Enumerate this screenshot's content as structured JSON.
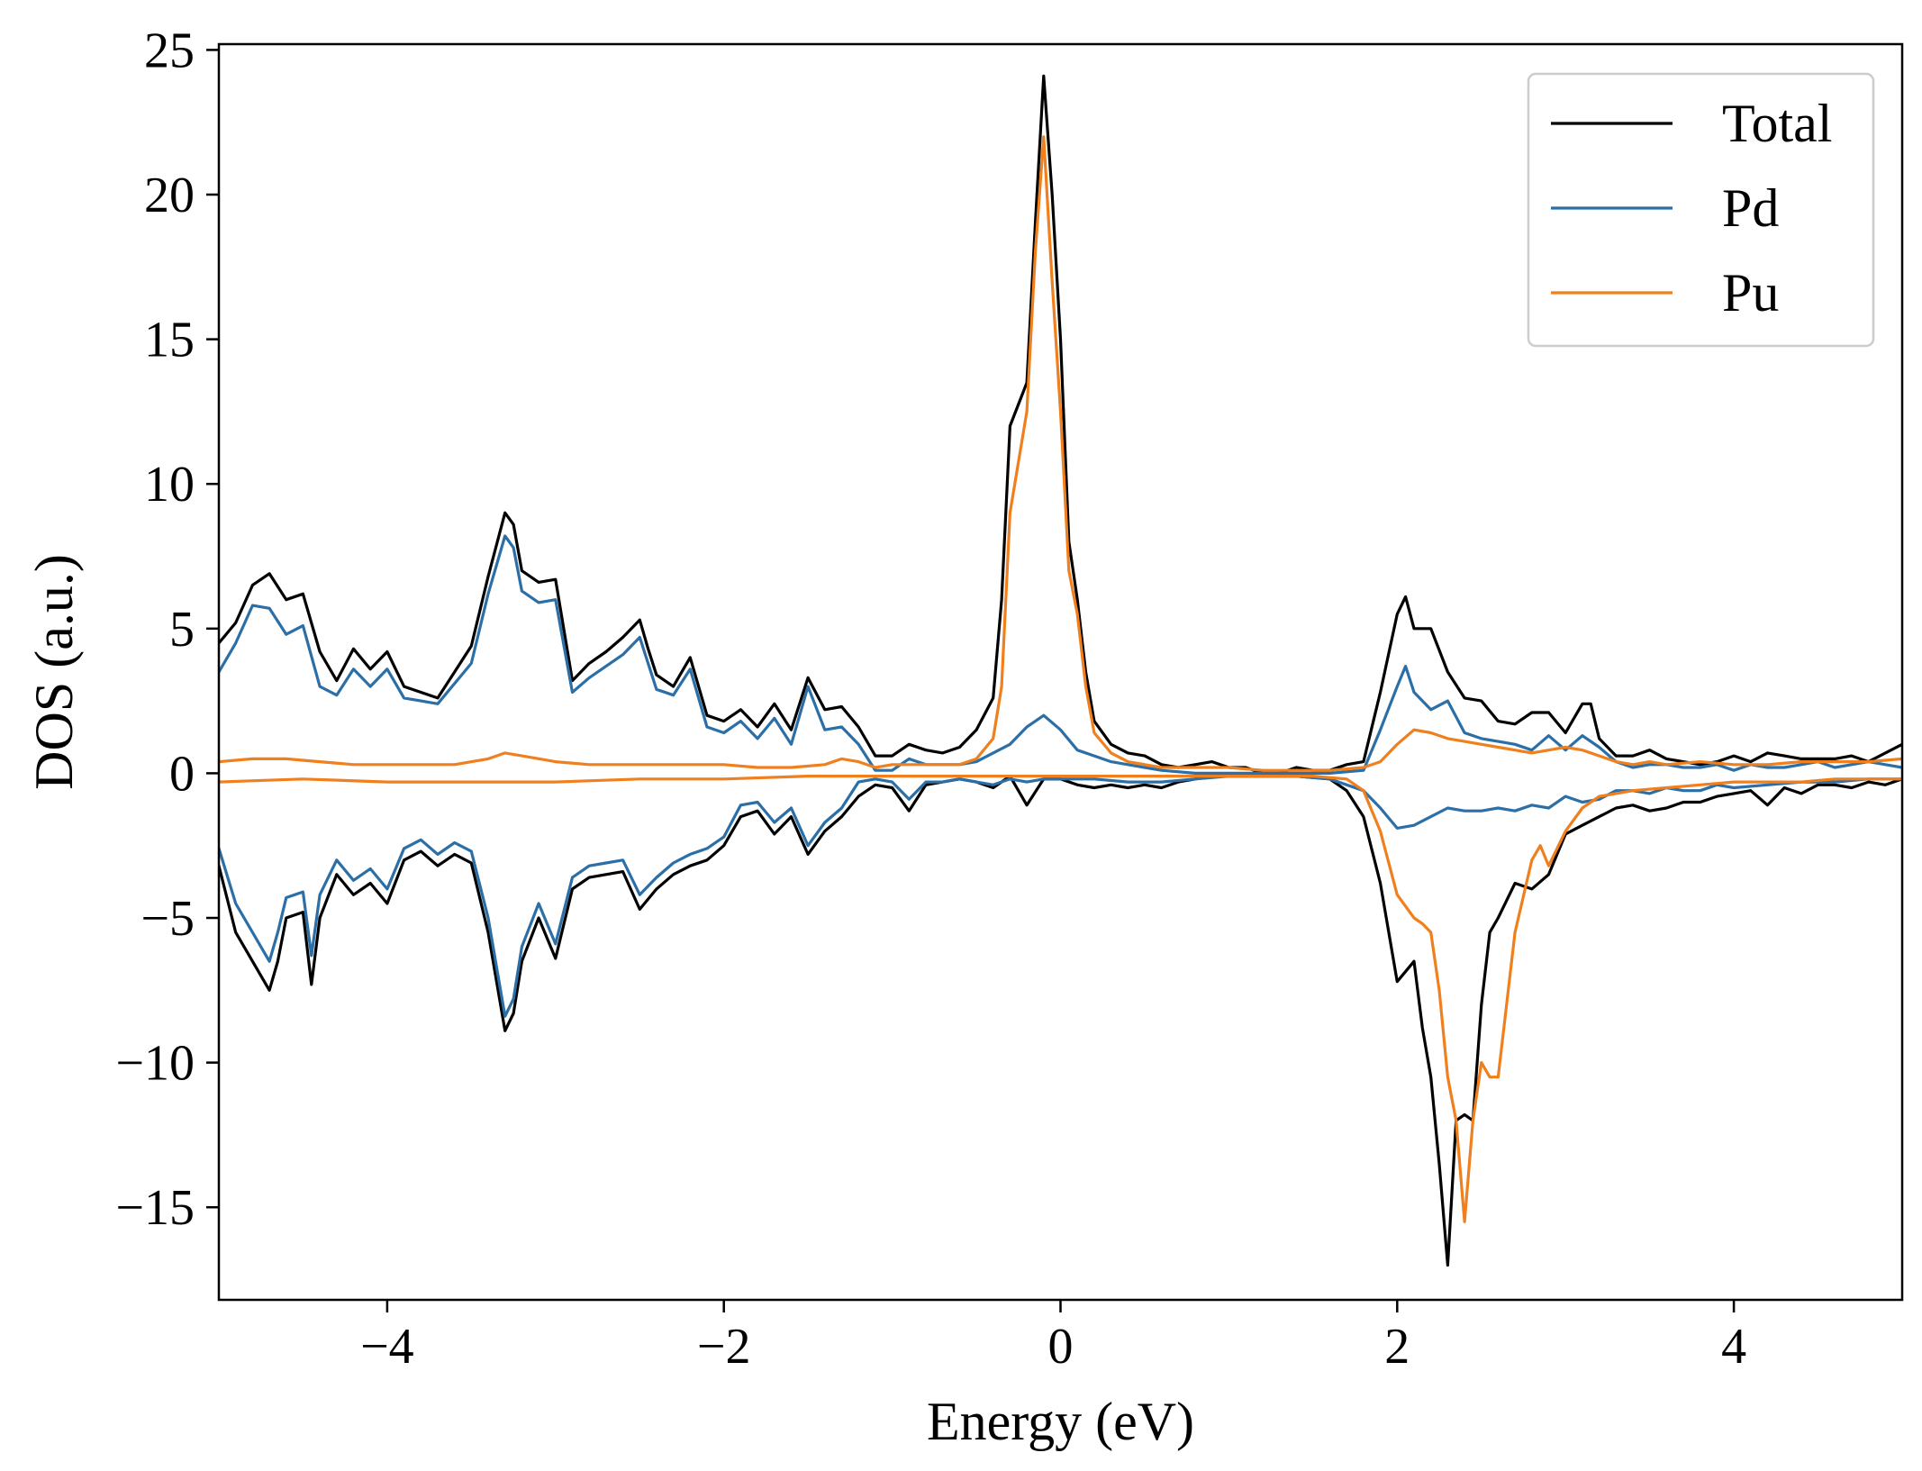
{
  "chart_data": {
    "type": "line",
    "title": "",
    "xlabel": "Energy (eV)",
    "ylabel": "DOS (a.u.)",
    "xlim": [
      -5,
      5
    ],
    "ylim": [
      -18.2,
      25.2
    ],
    "xticks": [
      -4,
      -2,
      0,
      2,
      4
    ],
    "xtick_labels": [
      "−4",
      "−2",
      "0",
      "2",
      "4"
    ],
    "yticks": [
      -15,
      -10,
      -5,
      0,
      5,
      10,
      15,
      20,
      25
    ],
    "ytick_labels": [
      "−15",
      "−10",
      "−5",
      "0",
      "5",
      "10",
      "15",
      "20",
      "25"
    ],
    "grid": false,
    "legend_position": "top-right",
    "series": [
      {
        "name": "Total",
        "color": "#000000",
        "component": "spin-up",
        "x": [
          -5.0,
          -4.9,
          -4.8,
          -4.7,
          -4.6,
          -4.5,
          -4.4,
          -4.3,
          -4.2,
          -4.1,
          -4.0,
          -3.9,
          -3.8,
          -3.7,
          -3.6,
          -3.5,
          -3.4,
          -3.3,
          -3.25,
          -3.2,
          -3.1,
          -3.0,
          -2.9,
          -2.8,
          -2.7,
          -2.6,
          -2.5,
          -2.45,
          -2.4,
          -2.3,
          -2.2,
          -2.1,
          -2.0,
          -1.9,
          -1.8,
          -1.7,
          -1.6,
          -1.5,
          -1.4,
          -1.3,
          -1.2,
          -1.1,
          -1.0,
          -0.9,
          -0.8,
          -0.7,
          -0.6,
          -0.5,
          -0.4,
          -0.35,
          -0.3,
          -0.2,
          -0.15,
          -0.1,
          -0.05,
          0.0,
          0.05,
          0.1,
          0.15,
          0.2,
          0.3,
          0.4,
          0.5,
          0.6,
          0.7,
          0.8,
          0.9,
          1.0,
          1.1,
          1.2,
          1.3,
          1.4,
          1.5,
          1.6,
          1.7,
          1.8,
          1.9,
          2.0,
          2.05,
          2.1,
          2.2,
          2.3,
          2.4,
          2.5,
          2.6,
          2.7,
          2.8,
          2.9,
          3.0,
          3.1,
          3.15,
          3.2,
          3.3,
          3.4,
          3.5,
          3.6,
          3.7,
          3.8,
          3.9,
          4.0,
          4.1,
          4.2,
          4.3,
          4.4,
          4.5,
          4.6,
          4.7,
          4.8,
          4.9,
          5.0
        ],
        "y": [
          4.5,
          5.2,
          6.5,
          6.9,
          6.0,
          6.2,
          4.2,
          3.2,
          4.3,
          3.6,
          4.2,
          3.0,
          2.8,
          2.6,
          3.5,
          4.4,
          6.8,
          9.0,
          8.6,
          7.0,
          6.6,
          6.7,
          3.2,
          3.8,
          4.2,
          4.7,
          5.3,
          4.3,
          3.4,
          3.0,
          4.0,
          2.0,
          1.8,
          2.2,
          1.6,
          2.4,
          1.5,
          3.3,
          2.2,
          2.3,
          1.6,
          0.6,
          0.6,
          1.0,
          0.8,
          0.7,
          0.9,
          1.5,
          2.6,
          6.0,
          12.0,
          13.5,
          19.0,
          24.1,
          20.0,
          15.0,
          8.0,
          6.0,
          3.5,
          1.8,
          1.0,
          0.7,
          0.6,
          0.3,
          0.2,
          0.3,
          0.4,
          0.2,
          0.2,
          0.0,
          0.0,
          0.2,
          0.1,
          0.1,
          0.3,
          0.4,
          2.8,
          5.5,
          6.1,
          5.0,
          5.0,
          3.5,
          2.6,
          2.5,
          1.8,
          1.7,
          2.1,
          2.1,
          1.4,
          2.4,
          2.4,
          1.2,
          0.6,
          0.6,
          0.8,
          0.5,
          0.4,
          0.3,
          0.4,
          0.6,
          0.4,
          0.7,
          0.6,
          0.5,
          0.5,
          0.5,
          0.6,
          0.4,
          0.7,
          1.0
        ]
      },
      {
        "name": "",
        "color": "#000000",
        "component": "spin-down",
        "x": [
          -5.0,
          -4.9,
          -4.8,
          -4.7,
          -4.65,
          -4.6,
          -4.5,
          -4.45,
          -4.4,
          -4.3,
          -4.2,
          -4.1,
          -4.0,
          -3.9,
          -3.8,
          -3.7,
          -3.6,
          -3.5,
          -3.4,
          -3.3,
          -3.25,
          -3.2,
          -3.1,
          -3.0,
          -2.9,
          -2.8,
          -2.7,
          -2.6,
          -2.5,
          -2.4,
          -2.3,
          -2.2,
          -2.1,
          -2.0,
          -1.9,
          -1.8,
          -1.7,
          -1.6,
          -1.5,
          -1.4,
          -1.3,
          -1.2,
          -1.1,
          -1.0,
          -0.9,
          -0.8,
          -0.7,
          -0.6,
          -0.5,
          -0.4,
          -0.3,
          -0.2,
          -0.1,
          0.0,
          0.1,
          0.2,
          0.3,
          0.4,
          0.5,
          0.6,
          0.7,
          0.8,
          0.9,
          1.0,
          1.2,
          1.4,
          1.6,
          1.7,
          1.8,
          1.9,
          2.0,
          2.1,
          2.15,
          2.2,
          2.25,
          2.3,
          2.35,
          2.4,
          2.45,
          2.5,
          2.55,
          2.6,
          2.7,
          2.8,
          2.9,
          3.0,
          3.1,
          3.2,
          3.3,
          3.4,
          3.5,
          3.6,
          3.7,
          3.8,
          3.9,
          4.0,
          4.1,
          4.2,
          4.3,
          4.4,
          4.5,
          4.6,
          4.7,
          4.8,
          4.9,
          5.0
        ],
        "y": [
          -3.2,
          -5.5,
          -6.5,
          -7.5,
          -6.5,
          -5.0,
          -4.8,
          -7.3,
          -5.0,
          -3.5,
          -4.2,
          -3.8,
          -4.5,
          -3.0,
          -2.7,
          -3.2,
          -2.8,
          -3.1,
          -5.5,
          -8.9,
          -8.3,
          -6.5,
          -5.0,
          -6.4,
          -4.0,
          -3.6,
          -3.5,
          -3.4,
          -4.7,
          -4.0,
          -3.5,
          -3.2,
          -3.0,
          -2.5,
          -1.5,
          -1.3,
          -2.1,
          -1.5,
          -2.8,
          -2.0,
          -1.5,
          -0.8,
          -0.4,
          -0.5,
          -1.3,
          -0.4,
          -0.3,
          -0.2,
          -0.3,
          -0.5,
          -0.1,
          -1.1,
          -0.2,
          -0.2,
          -0.4,
          -0.5,
          -0.4,
          -0.5,
          -0.4,
          -0.5,
          -0.3,
          -0.2,
          -0.1,
          -0.1,
          -0.1,
          -0.1,
          -0.2,
          -0.6,
          -1.5,
          -3.8,
          -7.2,
          -6.5,
          -8.8,
          -10.5,
          -13.5,
          -17.0,
          -12.0,
          -11.8,
          -12.0,
          -8.0,
          -5.5,
          -5.0,
          -3.8,
          -4.0,
          -3.5,
          -2.1,
          -1.8,
          -1.5,
          -1.2,
          -1.1,
          -1.3,
          -1.2,
          -1.0,
          -1.0,
          -0.8,
          -0.7,
          -0.6,
          -1.1,
          -0.5,
          -0.7,
          -0.4,
          -0.4,
          -0.5,
          -0.3,
          -0.4,
          -0.2
        ]
      },
      {
        "name": "Pd",
        "color": "#2c6fa6",
        "component": "spin-up",
        "x": [
          -5.0,
          -4.9,
          -4.8,
          -4.7,
          -4.6,
          -4.5,
          -4.4,
          -4.3,
          -4.2,
          -4.1,
          -4.0,
          -3.9,
          -3.8,
          -3.7,
          -3.6,
          -3.5,
          -3.4,
          -3.3,
          -3.25,
          -3.2,
          -3.1,
          -3.0,
          -2.9,
          -2.8,
          -2.7,
          -2.6,
          -2.5,
          -2.45,
          -2.4,
          -2.3,
          -2.2,
          -2.1,
          -2.0,
          -1.9,
          -1.8,
          -1.7,
          -1.6,
          -1.5,
          -1.4,
          -1.3,
          -1.2,
          -1.1,
          -1.0,
          -0.9,
          -0.8,
          -0.7,
          -0.6,
          -0.5,
          -0.4,
          -0.3,
          -0.2,
          -0.1,
          0.0,
          0.1,
          0.2,
          0.3,
          0.4,
          0.5,
          0.6,
          0.8,
          1.0,
          1.2,
          1.4,
          1.6,
          1.8,
          1.9,
          2.0,
          2.05,
          2.1,
          2.2,
          2.3,
          2.4,
          2.5,
          2.6,
          2.7,
          2.8,
          2.9,
          3.0,
          3.1,
          3.2,
          3.3,
          3.4,
          3.5,
          3.6,
          3.7,
          3.8,
          3.9,
          4.0,
          4.1,
          4.2,
          4.3,
          4.4,
          4.5,
          4.6,
          4.7,
          4.8,
          4.9,
          5.0
        ],
        "y": [
          3.5,
          4.5,
          5.8,
          5.7,
          4.8,
          5.1,
          3.0,
          2.7,
          3.6,
          3.0,
          3.6,
          2.6,
          2.5,
          2.4,
          3.1,
          3.8,
          6.2,
          8.2,
          7.8,
          6.3,
          5.9,
          6.0,
          2.8,
          3.3,
          3.7,
          4.1,
          4.7,
          3.8,
          2.9,
          2.7,
          3.6,
          1.6,
          1.4,
          1.8,
          1.2,
          1.9,
          1.0,
          3.0,
          1.5,
          1.6,
          1.0,
          0.1,
          0.1,
          0.5,
          0.3,
          0.3,
          0.3,
          0.4,
          0.7,
          1.0,
          1.6,
          2.0,
          1.5,
          0.8,
          0.6,
          0.4,
          0.3,
          0.2,
          0.1,
          0.0,
          0.0,
          0.0,
          0.0,
          0.0,
          0.1,
          1.5,
          3.0,
          3.7,
          2.8,
          2.2,
          2.5,
          1.4,
          1.2,
          1.1,
          1.0,
          0.8,
          1.3,
          0.8,
          1.3,
          0.9,
          0.4,
          0.2,
          0.3,
          0.3,
          0.2,
          0.2,
          0.3,
          0.1,
          0.3,
          0.2,
          0.2,
          0.3,
          0.4,
          0.2,
          0.3,
          0.4,
          0.3,
          0.2
        ]
      },
      {
        "name": "",
        "color": "#2c6fa6",
        "component": "spin-down",
        "x": [
          -5.0,
          -4.9,
          -4.8,
          -4.7,
          -4.65,
          -4.6,
          -4.5,
          -4.45,
          -4.4,
          -4.3,
          -4.2,
          -4.1,
          -4.0,
          -3.9,
          -3.8,
          -3.7,
          -3.6,
          -3.5,
          -3.4,
          -3.3,
          -3.25,
          -3.2,
          -3.1,
          -3.0,
          -2.9,
          -2.8,
          -2.7,
          -2.6,
          -2.5,
          -2.4,
          -2.3,
          -2.2,
          -2.1,
          -2.0,
          -1.9,
          -1.8,
          -1.7,
          -1.6,
          -1.5,
          -1.4,
          -1.3,
          -1.2,
          -1.1,
          -1.0,
          -0.9,
          -0.8,
          -0.7,
          -0.6,
          -0.5,
          -0.4,
          -0.3,
          -0.2,
          -0.1,
          0.0,
          0.2,
          0.4,
          0.6,
          0.8,
          1.0,
          1.2,
          1.4,
          1.6,
          1.8,
          1.9,
          2.0,
          2.1,
          2.2,
          2.3,
          2.4,
          2.5,
          2.6,
          2.7,
          2.8,
          2.9,
          3.0,
          3.1,
          3.2,
          3.3,
          3.4,
          3.5,
          3.6,
          3.7,
          3.8,
          3.9,
          4.0,
          4.2,
          4.4,
          4.6,
          4.8,
          5.0
        ],
        "y": [
          -2.6,
          -4.5,
          -5.5,
          -6.5,
          -5.5,
          -4.3,
          -4.1,
          -6.3,
          -4.2,
          -3.0,
          -3.7,
          -3.3,
          -4.0,
          -2.6,
          -2.3,
          -2.8,
          -2.4,
          -2.7,
          -5.0,
          -8.4,
          -7.8,
          -6.0,
          -4.5,
          -5.9,
          -3.6,
          -3.2,
          -3.1,
          -3.0,
          -4.2,
          -3.6,
          -3.1,
          -2.8,
          -2.6,
          -2.2,
          -1.1,
          -1.0,
          -1.7,
          -1.2,
          -2.5,
          -1.7,
          -1.2,
          -0.3,
          -0.2,
          -0.3,
          -0.9,
          -0.3,
          -0.3,
          -0.2,
          -0.3,
          -0.4,
          -0.2,
          -0.3,
          -0.2,
          -0.2,
          -0.2,
          -0.3,
          -0.3,
          -0.2,
          -0.1,
          -0.1,
          -0.1,
          -0.2,
          -0.6,
          -1.2,
          -1.9,
          -1.8,
          -1.5,
          -1.2,
          -1.3,
          -1.3,
          -1.2,
          -1.3,
          -1.1,
          -1.2,
          -0.8,
          -1.0,
          -0.9,
          -0.6,
          -0.6,
          -0.7,
          -0.5,
          -0.6,
          -0.6,
          -0.4,
          -0.5,
          -0.4,
          -0.3,
          -0.3,
          -0.2,
          -0.2
        ]
      },
      {
        "name": "Pu",
        "color": "#f07f1d",
        "component": "spin-up",
        "x": [
          -5.0,
          -4.8,
          -4.6,
          -4.4,
          -4.2,
          -4.0,
          -3.8,
          -3.6,
          -3.4,
          -3.3,
          -3.2,
          -3.0,
          -2.8,
          -2.6,
          -2.4,
          -2.2,
          -2.0,
          -1.8,
          -1.6,
          -1.4,
          -1.3,
          -1.2,
          -1.1,
          -1.0,
          -0.8,
          -0.6,
          -0.5,
          -0.4,
          -0.35,
          -0.3,
          -0.2,
          -0.15,
          -0.1,
          -0.05,
          0.0,
          0.05,
          0.1,
          0.15,
          0.2,
          0.3,
          0.4,
          0.5,
          0.6,
          0.7,
          0.8,
          1.0,
          1.2,
          1.4,
          1.6,
          1.8,
          1.9,
          2.0,
          2.1,
          2.2,
          2.3,
          2.4,
          2.5,
          2.6,
          2.7,
          2.8,
          2.9,
          3.0,
          3.1,
          3.2,
          3.3,
          3.4,
          3.5,
          3.6,
          3.8,
          4.0,
          4.2,
          4.4,
          4.6,
          4.8,
          5.0
        ],
        "y": [
          0.4,
          0.5,
          0.5,
          0.4,
          0.3,
          0.3,
          0.3,
          0.3,
          0.5,
          0.7,
          0.6,
          0.4,
          0.3,
          0.3,
          0.3,
          0.3,
          0.3,
          0.2,
          0.2,
          0.3,
          0.5,
          0.4,
          0.2,
          0.3,
          0.3,
          0.3,
          0.5,
          1.2,
          3.0,
          9.0,
          12.5,
          18.0,
          22.0,
          17.0,
          12.5,
          7.0,
          5.5,
          3.0,
          1.4,
          0.7,
          0.4,
          0.3,
          0.2,
          0.2,
          0.2,
          0.2,
          0.1,
          0.1,
          0.1,
          0.2,
          0.4,
          1.0,
          1.5,
          1.4,
          1.2,
          1.1,
          1.0,
          0.9,
          0.8,
          0.7,
          0.8,
          0.9,
          0.8,
          0.6,
          0.4,
          0.3,
          0.4,
          0.3,
          0.4,
          0.3,
          0.3,
          0.4,
          0.4,
          0.4,
          0.5
        ]
      },
      {
        "name": "",
        "color": "#f07f1d",
        "component": "spin-down",
        "x": [
          -5.0,
          -4.5,
          -4.0,
          -3.5,
          -3.0,
          -2.5,
          -2.0,
          -1.5,
          -1.0,
          -0.5,
          0.0,
          0.5,
          1.0,
          1.5,
          1.7,
          1.8,
          1.9,
          2.0,
          2.1,
          2.15,
          2.2,
          2.25,
          2.3,
          2.35,
          2.4,
          2.45,
          2.5,
          2.55,
          2.6,
          2.7,
          2.8,
          2.85,
          2.9,
          3.0,
          3.1,
          3.2,
          3.3,
          3.4,
          3.6,
          3.8,
          4.0,
          4.2,
          4.4,
          4.6,
          4.8,
          5.0
        ],
        "y": [
          -0.3,
          -0.2,
          -0.3,
          -0.3,
          -0.3,
          -0.2,
          -0.2,
          -0.1,
          -0.1,
          -0.1,
          -0.1,
          -0.1,
          -0.1,
          -0.1,
          -0.2,
          -0.6,
          -2.0,
          -4.2,
          -5.0,
          -5.2,
          -5.5,
          -7.5,
          -10.5,
          -12.0,
          -15.5,
          -12.0,
          -10.0,
          -10.5,
          -10.5,
          -5.5,
          -3.0,
          -2.5,
          -3.2,
          -2.0,
          -1.2,
          -0.8,
          -0.7,
          -0.6,
          -0.5,
          -0.4,
          -0.3,
          -0.3,
          -0.3,
          -0.2,
          -0.2,
          -0.2
        ]
      }
    ],
    "legend": [
      {
        "label": "Total",
        "color": "#000000"
      },
      {
        "label": "Pd",
        "color": "#2c6fa6"
      },
      {
        "label": "Pu",
        "color": "#f07f1d"
      }
    ]
  }
}
